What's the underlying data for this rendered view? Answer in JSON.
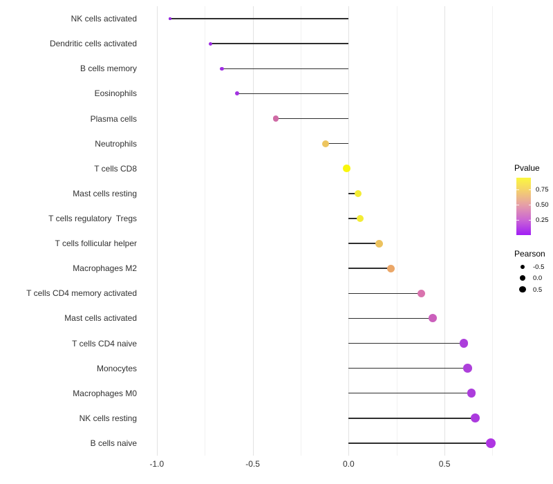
{
  "chart_data": {
    "type": "lollipop",
    "orientation": "horizontal",
    "title": "",
    "xlabel": "",
    "ylabel": "",
    "grid": true,
    "xlim": [
      -1.075,
      0.835
    ],
    "x_ticks": [
      {
        "value": -1.0,
        "label": "-1.0"
      },
      {
        "value": -0.5,
        "label": "-0.5"
      },
      {
        "value": 0.0,
        "label": "0.0"
      },
      {
        "value": 0.5,
        "label": "0.5"
      }
    ],
    "x_minor_ticks": [
      -0.75,
      -0.25,
      0.25,
      0.75
    ],
    "stem_color": "#2e2e2e",
    "categories": [
      "NK cells activated",
      "Dendritic cells activated",
      "B cells memory",
      "Eosinophils",
      "Plasma cells",
      "Neutrophils",
      "T cells CD8",
      "Mast cells resting",
      "T cells regulatory  Tregs",
      "T cells follicular helper",
      "Macrophages M2",
      "T cells CD4 memory activated",
      "Mast cells activated",
      "T cells CD4 naive",
      "Monocytes",
      "Macrophages M0",
      "NK cells resting",
      "B cells naive"
    ],
    "series": [
      {
        "name": "Pearson",
        "values": [
          -0.93,
          -0.72,
          -0.66,
          -0.58,
          -0.38,
          -0.12,
          -0.01,
          0.05,
          0.06,
          0.16,
          0.22,
          0.38,
          0.44,
          0.6,
          0.62,
          0.64,
          0.66,
          0.74
        ]
      }
    ],
    "points": [
      {
        "label": "NK cells activated",
        "pearson": -0.93,
        "color": "#9328DF",
        "size": 3.5
      },
      {
        "label": "Dendritic cells activated",
        "pearson": -0.72,
        "color": "#9D2CE2",
        "size": 5.0
      },
      {
        "label": "B cells memory",
        "pearson": -0.66,
        "color": "#9F2EE2",
        "size": 5.5
      },
      {
        "label": "Eosinophils",
        "pearson": -0.58,
        "color": "#A333E1",
        "size": 6.0
      },
      {
        "label": "Plasma cells",
        "pearson": -0.38,
        "color": "#CF6BA5",
        "size": 8.5
      },
      {
        "label": "Neutrophils",
        "pearson": -0.12,
        "color": "#EDC55F",
        "size": 10.0
      },
      {
        "label": "T cells CD8",
        "pearson": -0.01,
        "color": "#F9F60D",
        "size": 10.5
      },
      {
        "label": "Mast cells resting",
        "pearson": 0.05,
        "color": "#F3EC35",
        "size": 10.5
      },
      {
        "label": "T cells regulatory  Tregs",
        "pearson": 0.06,
        "color": "#F3EC35",
        "size": 10.5
      },
      {
        "label": "T cells follicular helper",
        "pearson": 0.16,
        "color": "#ECC25E",
        "size": 11.0
      },
      {
        "label": "Macrophages M2",
        "pearson": 0.22,
        "color": "#EBA768",
        "size": 11.0
      },
      {
        "label": "T cells CD4 memory activated",
        "pearson": 0.38,
        "color": "#D973AE",
        "size": 11.5
      },
      {
        "label": "Mast cells activated",
        "pearson": 0.44,
        "color": "#CB5FBC",
        "size": 12.0
      },
      {
        "label": "T cells CD4 naive",
        "pearson": 0.6,
        "color": "#AC3EDB",
        "size": 12.5
      },
      {
        "label": "Monocytes",
        "pearson": 0.62,
        "color": "#AD40DA",
        "size": 12.5
      },
      {
        "label": "Macrophages M0",
        "pearson": 0.64,
        "color": "#AC3DDC",
        "size": 12.5
      },
      {
        "label": "NK cells resting",
        "pearson": 0.66,
        "color": "#AB3ADE",
        "size": 13.0
      },
      {
        "label": "B cells naive",
        "pearson": 0.74,
        "color": "#AE35E2",
        "size": 14.0
      }
    ],
    "legends": {
      "pvalue": {
        "title": "Pvalue",
        "ticks": [
          "0.75",
          "0.50",
          "0.25"
        ],
        "gradient": [
          {
            "pos": 0,
            "color": "#FBF73E"
          },
          {
            "pos": 20.5,
            "color": "#F5D469"
          },
          {
            "pos": 47,
            "color": "#E6A0A6"
          },
          {
            "pos": 73.5,
            "color": "#CB66D4"
          },
          {
            "pos": 100,
            "color": "#A01DF5"
          }
        ]
      },
      "pearson": {
        "title": "Pearson",
        "entries": [
          {
            "label": "-0.5",
            "size": 6.0
          },
          {
            "label": "0.0",
            "size": 8.0
          },
          {
            "label": "0.5",
            "size": 9.5
          }
        ]
      }
    }
  }
}
